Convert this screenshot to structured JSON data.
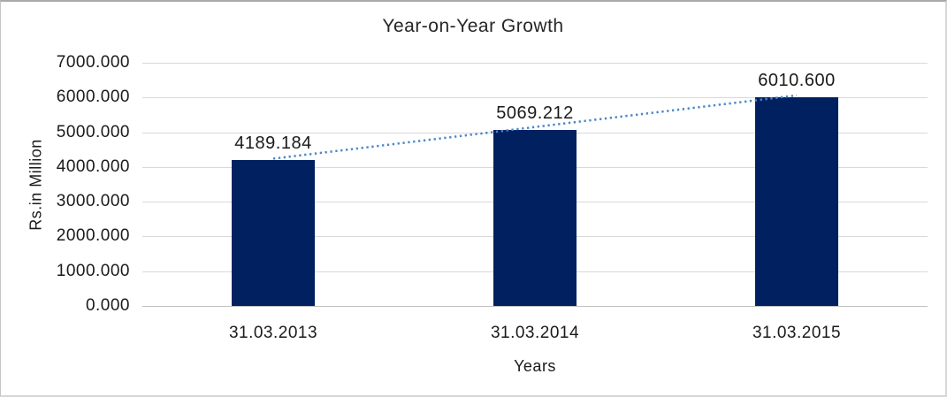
{
  "chart_data": {
    "type": "bar",
    "title": "Year-on-Year Growth",
    "xlabel": "Years",
    "ylabel": "Rs.in Million",
    "categories": [
      "31.03.2013",
      "31.03.2014",
      "31.03.2015"
    ],
    "values": [
      4189.184,
      5069.212,
      6010.6
    ],
    "data_labels": [
      "4189.184",
      "5069.212",
      "6010.600"
    ],
    "ylim": [
      0,
      7000
    ],
    "ytick_step": 1000,
    "ytick_labels": [
      "0.000",
      "1000.000",
      "2000.000",
      "3000.000",
      "4000.000",
      "5000.000",
      "6000.000",
      "7000.000"
    ],
    "grid": "horizontal",
    "legend": "none",
    "trendline": {
      "type": "linear",
      "style": "dotted",
      "from_label": "4189.184",
      "to_label": "6010.600"
    },
    "colors": {
      "bar": "#002060",
      "trendline": "#4a86c8",
      "gridline": "#d9d9d9",
      "baseline": "#c0c0c0",
      "text": "#1a1a1a"
    }
  }
}
